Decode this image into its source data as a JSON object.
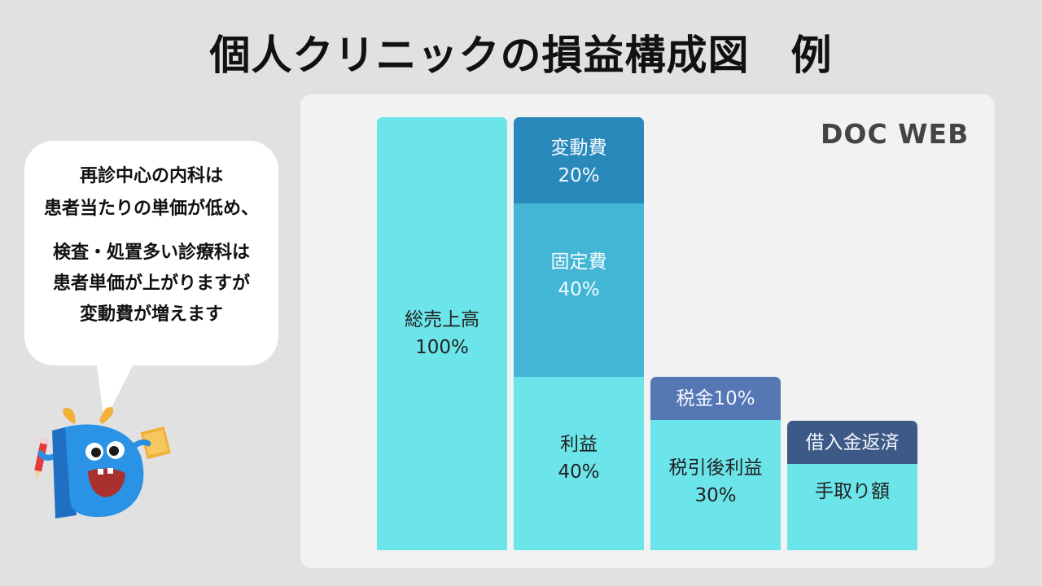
{
  "title": "個人クリニックの損益構成図　例",
  "brand": "DOC WEB",
  "bubble": {
    "line1": "再診中心の内科は",
    "line2": "患者当たりの単価が低め、",
    "line3": "検査・処置多い診療科は",
    "line4": "患者単価が上がりますが",
    "line5": "変動費が増えます"
  },
  "colors": {
    "light": "#6ce5ea",
    "mid": "#43b6d6",
    "dark": "#2a89bb",
    "slate": "#5577b4",
    "navy": "#3d5a86"
  },
  "columns": {
    "sales": {
      "label": "総売上高",
      "pct": "100%",
      "value": 100
    },
    "variable": {
      "label": "変動費",
      "pct": "20%",
      "value": 20
    },
    "fixed": {
      "label": "固定費",
      "pct": "40%",
      "value": 40
    },
    "profit": {
      "label": "利益",
      "pct": "40%",
      "value": 40
    },
    "tax": {
      "label": "税金10%",
      "value": 10
    },
    "after_tax": {
      "label": "税引後利益",
      "pct": "30%",
      "value": 30
    },
    "loan": {
      "label": "借入金返済"
    },
    "takehome": {
      "label": "手取り額"
    }
  }
}
